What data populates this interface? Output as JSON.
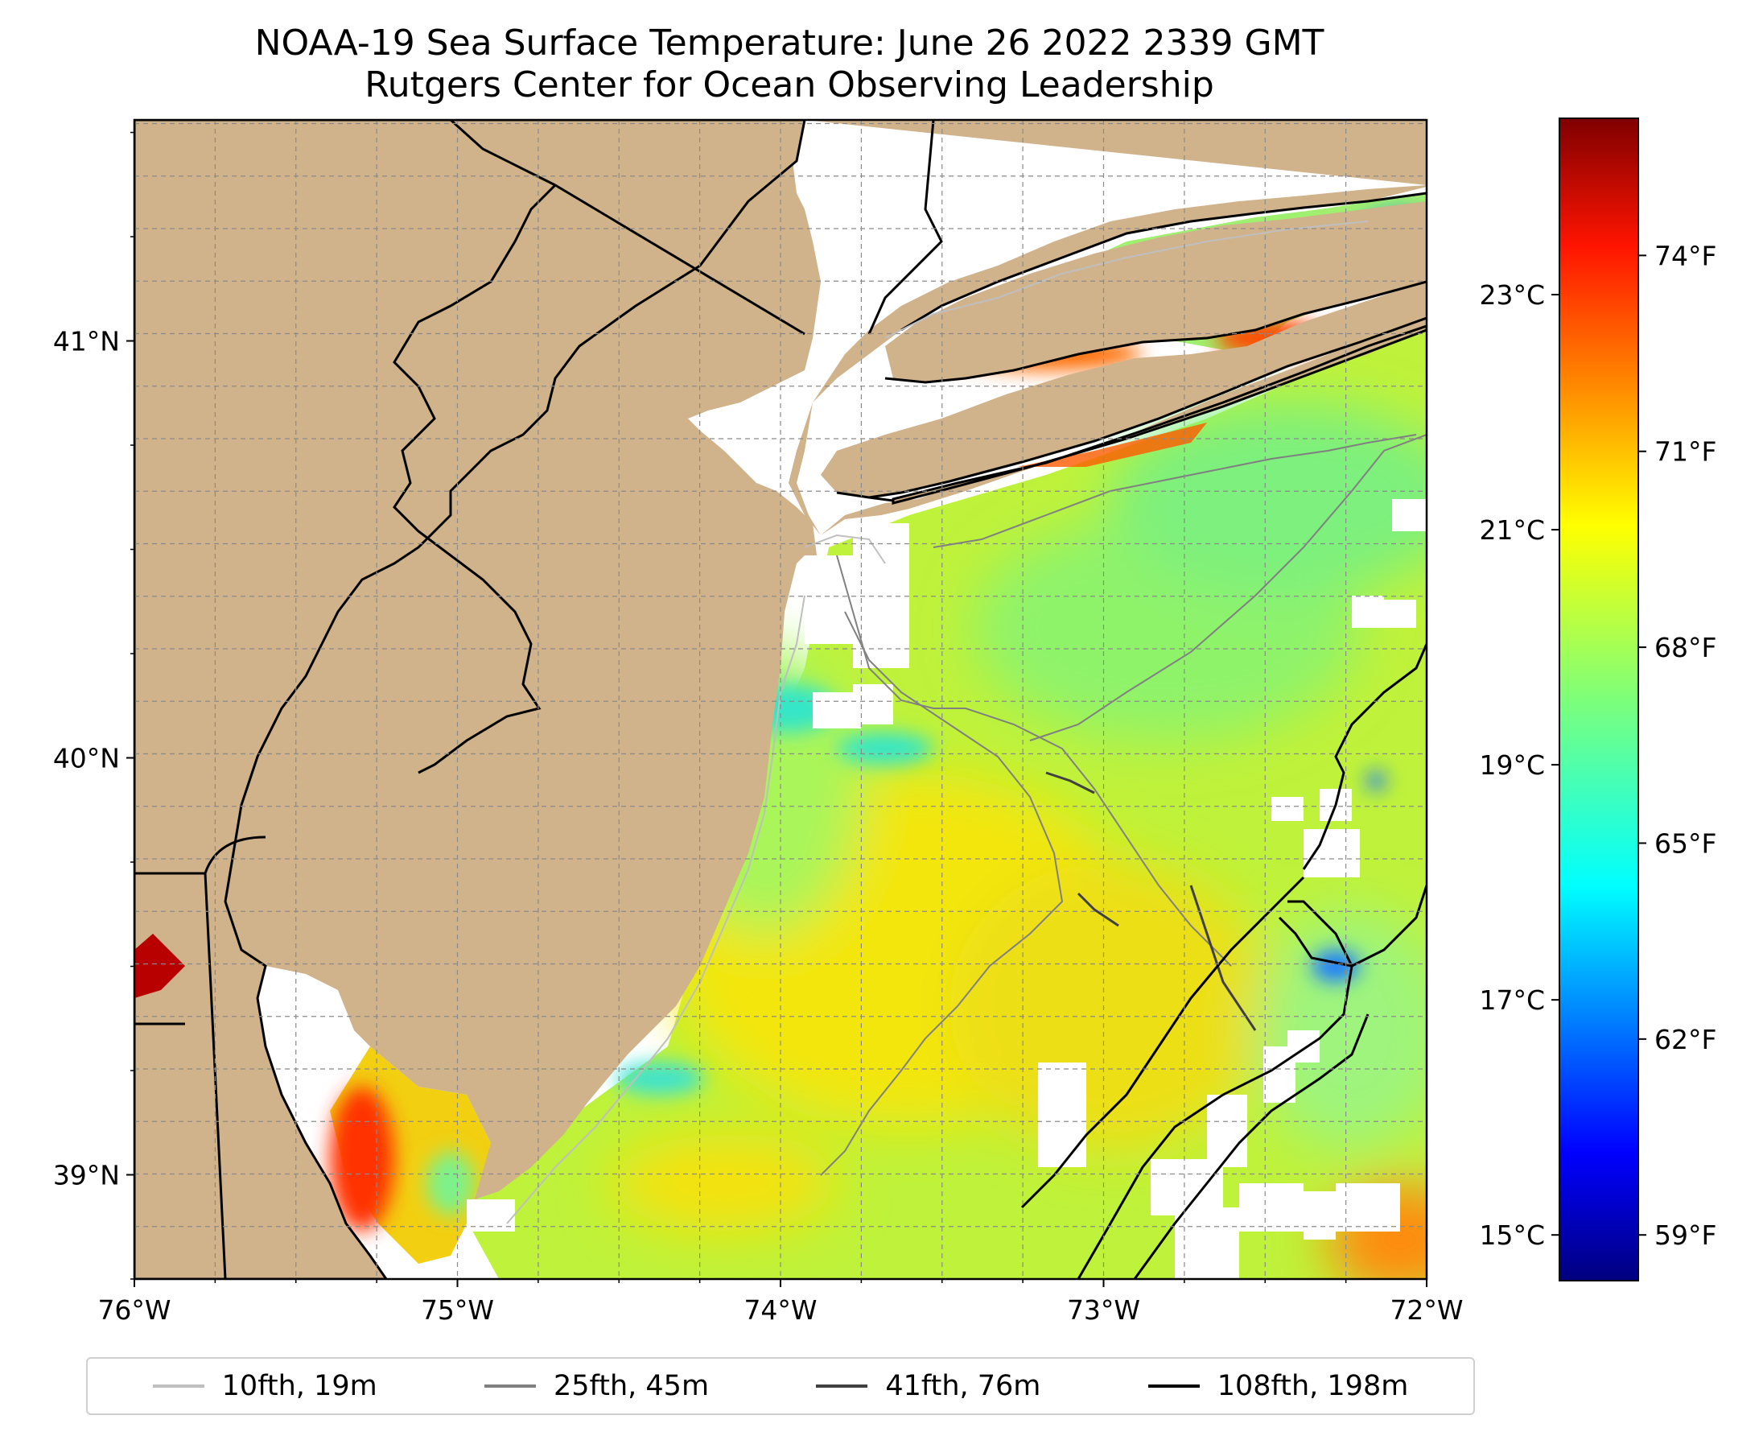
{
  "title": {
    "line1": "NOAA-19 Sea Surface Temperature: June 26 2022 2339 GMT",
    "line2": "Rutgers Center for Ocean Observing Leadership"
  },
  "map": {
    "lon_range": [
      -76,
      -72
    ],
    "lat_range": [
      38.75,
      41.53
    ],
    "lon_ticks": [
      {
        "value": -76,
        "label": "76°W"
      },
      {
        "value": -75,
        "label": "75°W"
      },
      {
        "value": -74,
        "label": "74°W"
      },
      {
        "value": -73,
        "label": "73°W"
      },
      {
        "value": -72,
        "label": "72°W"
      }
    ],
    "lat_ticks": [
      {
        "value": 41,
        "label": "41°N"
      },
      {
        "value": 40,
        "label": "40°N"
      },
      {
        "value": 39,
        "label": "39°N"
      }
    ],
    "gridlines": true,
    "land_color": "#d0b28b",
    "coastline_color": "#000000"
  },
  "colorbar": {
    "colormap": "jet",
    "range_f": [
      58.3,
      76.1
    ],
    "fahrenheit_ticks": [
      {
        "value": 59,
        "label": "59°F"
      },
      {
        "value": 62,
        "label": "62°F"
      },
      {
        "value": 65,
        "label": "65°F"
      },
      {
        "value": 68,
        "label": "68°F"
      },
      {
        "value": 71,
        "label": "71°F"
      },
      {
        "value": 74,
        "label": "74°F"
      }
    ],
    "celsius_ticks": [
      {
        "value": 15,
        "label": "15°C"
      },
      {
        "value": 17,
        "label": "17°C"
      },
      {
        "value": 19,
        "label": "19°C"
      },
      {
        "value": 21,
        "label": "21°C"
      },
      {
        "value": 23,
        "label": "23°C"
      }
    ]
  },
  "legend": {
    "items": [
      {
        "label": "10fth, 19m",
        "color": "#bfbfbf"
      },
      {
        "label": "25fth, 45m",
        "color": "#808080"
      },
      {
        "label": "41fth, 76m",
        "color": "#404040"
      },
      {
        "label": "108fth, 198m",
        "color": "#000000"
      }
    ]
  }
}
